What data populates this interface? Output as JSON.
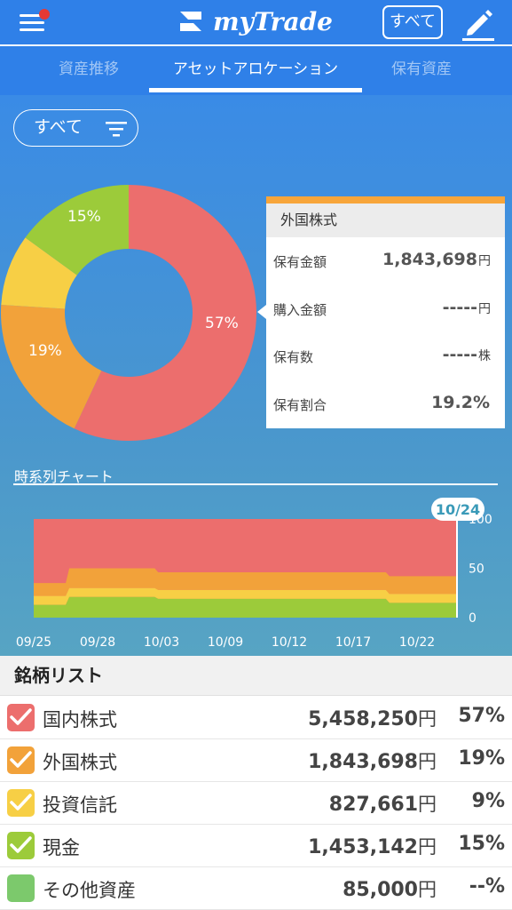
{
  "header": {
    "logo_text": "myTrade",
    "all_button": "すべて",
    "colors": {
      "primary": "#2f80e8",
      "notification": "#e53935"
    }
  },
  "tabs": [
    {
      "label": "資産推移",
      "active": false
    },
    {
      "label": "アセットアロケーション",
      "active": true
    },
    {
      "label": "保有資産",
      "active": false
    }
  ],
  "filter": {
    "label": "すべて"
  },
  "chart_data": [
    {
      "type": "pie",
      "labels": [
        "国内株式",
        "外国株式",
        "投資信託",
        "現金"
      ],
      "values": [
        57,
        19,
        9,
        15
      ],
      "data_labels": [
        "57%",
        "19%",
        "",
        "15%"
      ],
      "colors": [
        "#ec6e6d",
        "#f2a23a",
        "#f7cf45",
        "#9ccb3a"
      ]
    },
    {
      "type": "area",
      "title": "時系列チャート",
      "x_ticks": [
        "09/25",
        "09/28",
        "10/03",
        "10/09",
        "10/12",
        "10/17",
        "10/22"
      ],
      "y_ticks": [
        "100",
        "50",
        "0"
      ],
      "ylim": [
        0,
        100
      ],
      "marker_label": "10/24",
      "series": [
        {
          "name": "国内株式",
          "color": "#ec6e6d",
          "values": [
            64,
            58,
            58,
            60,
            60,
            60,
            60,
            60,
            60,
            60,
            61,
            61,
            61,
            61,
            61,
            61,
            61,
            61,
            61,
            61,
            61,
            61,
            61,
            61,
            61,
            61,
            61,
            61,
            61,
            61,
            61,
            61,
            61,
            61,
            61,
            61,
            61,
            61,
            61,
            61,
            61,
            61,
            61,
            61,
            61,
            61,
            61,
            61,
            61,
            61,
            61,
            61,
            61,
            61,
            61,
            61,
            61,
            61,
            61,
            61,
            61,
            61,
            61,
            61,
            61,
            61,
            61,
            61,
            61,
            61,
            61,
            61,
            61,
            61,
            61,
            61,
            61,
            61,
            61,
            61,
            61,
            61,
            61,
            61,
            61,
            61,
            61,
            61,
            61,
            61,
            61,
            61,
            61,
            61,
            61,
            61,
            61,
            61,
            61,
            61,
            61,
            61,
            61,
            61,
            61,
            61,
            61,
            61,
            61,
            61,
            61,
            61,
            61,
            61,
            61,
            61,
            61,
            61,
            61,
            61
          ]
        },
        {
          "name": "外国株式",
          "color": "#f2a23a",
          "values": [
            0
          ]
        },
        {
          "name": "投資信託",
          "color": "#f7cf45",
          "values": [
            0
          ]
        },
        {
          "name": "現金",
          "color": "#9ccb3a",
          "values": [
            0
          ]
        }
      ]
    }
  ],
  "tooltip": {
    "title": "外国株式",
    "rows": [
      {
        "label": "保有金額",
        "value": "1,843,698",
        "unit": "円"
      },
      {
        "label": "購入金額",
        "value": "-----",
        "unit": "円"
      },
      {
        "label": "保有数",
        "value": "-----",
        "unit": "株"
      },
      {
        "label": "保有割合",
        "value": "19.2%",
        "unit": ""
      }
    ],
    "accent": "#f7a53a"
  },
  "list": {
    "title": "銘柄リスト",
    "items": [
      {
        "name": "国内株式",
        "amount": "5,458,250",
        "unit": "円",
        "percent": "57%",
        "color": "#ec6e6d",
        "checked": true
      },
      {
        "name": "外国株式",
        "amount": "1,843,698",
        "unit": "円",
        "percent": "19%",
        "color": "#f2a23a",
        "checked": true
      },
      {
        "name": "投資信託",
        "amount": "827,661",
        "unit": "円",
        "percent": "9%",
        "color": "#f7cf45",
        "checked": true
      },
      {
        "name": "現金",
        "amount": "1,453,142",
        "unit": "円",
        "percent": "15%",
        "color": "#9ccb3a",
        "checked": true
      },
      {
        "name": "その他資産",
        "amount": "85,000",
        "unit": "円",
        "percent": "--%",
        "color": "#7cc96c",
        "checked": false
      }
    ]
  }
}
